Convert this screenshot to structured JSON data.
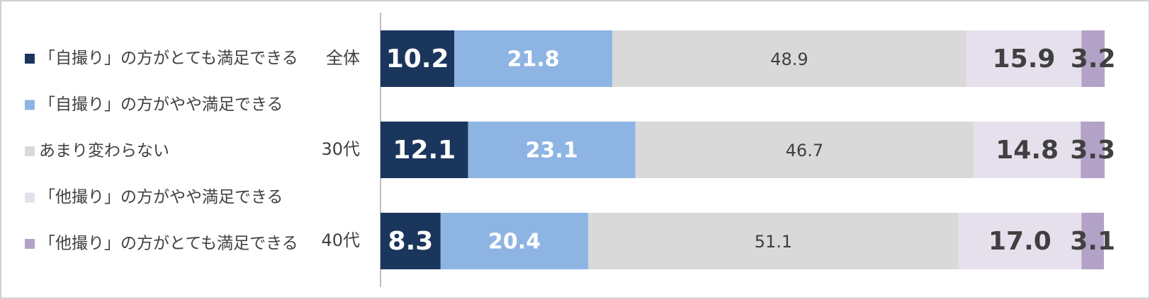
{
  "chart_data": {
    "type": "stacked-bar-horizontal",
    "categories": [
      "全体",
      "30代",
      "40代"
    ],
    "xlim": [
      0,
      100
    ],
    "legend": "left",
    "series": [
      {
        "name": "「自撮り」の方がとても満足できる",
        "color": "#1b365d",
        "values": [
          10.2,
          12.1,
          8.3
        ]
      },
      {
        "name": "「自撮り」の方がやや満足できる",
        "color": "#8eb4e3",
        "values": [
          21.8,
          23.1,
          20.4
        ]
      },
      {
        "name": "あまり変わらない",
        "color": "#d9d9d9",
        "values": [
          48.9,
          46.7,
          51.1
        ]
      },
      {
        "name": "「他撮り」の方がやや満足できる",
        "color": "#e6e0ec",
        "values": [
          15.9,
          14.8,
          17.0
        ],
        "value_labels": [
          "15.9",
          "14.8",
          "17.0"
        ]
      },
      {
        "name": "「他撮り」の方がとても満足できる",
        "color": "#b3a2c7",
        "values": [
          3.2,
          3.3,
          3.1
        ]
      }
    ]
  }
}
